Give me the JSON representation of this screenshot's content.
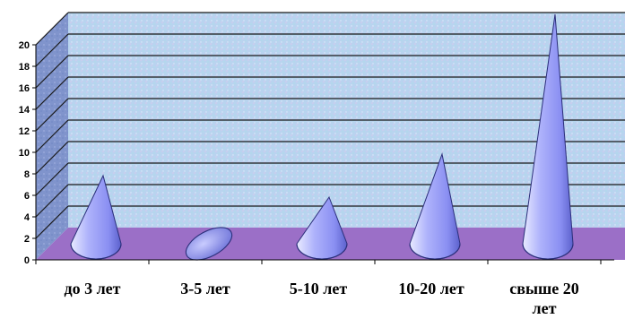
{
  "chart_data": {
    "type": "bar",
    "bar_shape": "3d-cone",
    "categories": [
      "до 3 лет",
      "3-5 лет",
      "5-10 лет",
      "10-20 лет",
      "свыше 20 лет"
    ],
    "values": [
      6,
      0,
      4,
      8,
      21
    ],
    "ylim": [
      0,
      20
    ],
    "yticks": [
      0,
      2,
      4,
      6,
      8,
      10,
      12,
      14,
      16,
      18,
      20
    ],
    "grid": true,
    "legend": "none",
    "colors": {
      "cone": "#8f94f5",
      "cone_light": "#e6e8ff",
      "cone_dark": "#5a5fc8",
      "floor": "#9b6fc7",
      "back_wall": "#b8d2ee",
      "side_wall": "#7c90c8",
      "gridline": "#1a1a1a"
    }
  }
}
